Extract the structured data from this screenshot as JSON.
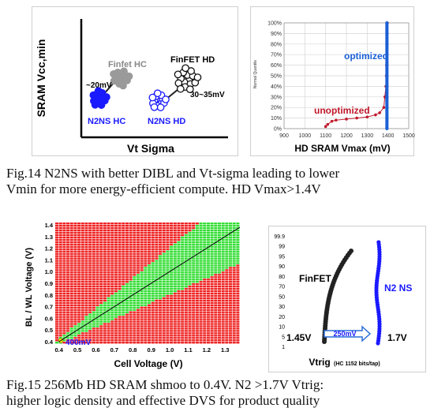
{
  "chart_data": [
    {
      "type": "scatter",
      "xlabel": "Vt Sigma",
      "ylabel": "SRAM Vcc,min",
      "series": [
        {
          "name": "Finfet HC",
          "color": "#9a9a9a"
        },
        {
          "name": "FinFET HD",
          "color": "#111111"
        },
        {
          "name": "N2NS HC",
          "color": "#1a1aff"
        },
        {
          "name": "N2NS HD",
          "color": "#1a1aff"
        }
      ],
      "annotations": [
        "~20mV",
        "30~35mV"
      ]
    },
    {
      "type": "scatter",
      "xlabel": "HD SRAM Vmax (mV)",
      "ylabel": "Normal Quantile",
      "xticks": [
        "900",
        "1000",
        "1100",
        "1200",
        "1300",
        "1400",
        "1500"
      ],
      "yticks": [
        "0%",
        "10%",
        "20%",
        "30%",
        "40%",
        "50%",
        "60%",
        "70%",
        "80%",
        "90%",
        "100%"
      ],
      "xlim": [
        900,
        1500
      ],
      "ylim": [
        0,
        100
      ],
      "series": [
        {
          "name": "optimized",
          "color": "#1a5fd6",
          "points": [
            [
              1395,
              0
            ],
            [
              1395,
              10
            ],
            [
              1395,
              20
            ],
            [
              1395,
              30
            ],
            [
              1395,
              40
            ],
            [
              1395,
              50
            ],
            [
              1395,
              60
            ],
            [
              1395,
              70
            ],
            [
              1395,
              80
            ],
            [
              1395,
              90
            ],
            [
              1395,
              100
            ]
          ]
        },
        {
          "name": "unoptimized",
          "color": "#c0192b",
          "points": [
            [
              1100,
              2
            ],
            [
              1110,
              4
            ],
            [
              1130,
              7
            ],
            [
              1150,
              8
            ],
            [
              1200,
              9
            ],
            [
              1250,
              10
            ],
            [
              1300,
              11
            ],
            [
              1340,
              13
            ],
            [
              1360,
              15
            ],
            [
              1380,
              20
            ],
            [
              1385,
              30
            ],
            [
              1390,
              40
            ],
            [
              1392,
              50
            ],
            [
              1393,
              60
            ],
            [
              1394,
              70
            ],
            [
              1395,
              80
            ],
            [
              1396,
              90
            ],
            [
              1397,
              100
            ]
          ]
        }
      ]
    },
    {
      "type": "heatmap",
      "xlabel": "Cell Voltage (V)",
      "ylabel": "BL / WL Voltage (V)",
      "xticks": [
        "0.4",
        "0.5",
        "0.6",
        "0.7",
        "0.8",
        "0.9",
        "1.0",
        "1.1",
        "1.2",
        "1.3"
      ],
      "yticks": [
        "0.4",
        "0.5",
        "0.6",
        "0.7",
        "0.8",
        "0.9",
        "1.0",
        "1.1",
        "1.2",
        "1.3",
        "1.4"
      ],
      "xlim": [
        0.38,
        1.38
      ],
      "ylim": [
        0.38,
        1.42
      ],
      "annotation": "400mV",
      "pass_color": "#33dd33",
      "fail_color": "#ee2222"
    },
    {
      "type": "scatter",
      "xlabel": "Vtrig",
      "xlabel_note": "(HC 1152 bits/tap)",
      "yticks": [
        "1",
        "5",
        "10",
        "20",
        "30",
        "50",
        "70",
        "80",
        "90",
        "95",
        "99",
        "99.9"
      ],
      "series": [
        {
          "name": "FinFET",
          "color": "#222222"
        },
        {
          "name": "N2 NS",
          "color": "#1a1aff"
        }
      ],
      "annotations": {
        "left": "1.45V",
        "delta": "250mV",
        "right": "1.7V"
      }
    }
  ],
  "captions": {
    "fig14_line1": "Fig.14  N2NS with better DIBL and Vt-sigma leading to lower",
    "fig14_line2": "Vmin for more energy-efficient compute.  HD Vmax>1.4V",
    "fig15_line1": "Fig.15 256Mb HD SRAM shmoo to 0.4V.  N2 >1.7V Vtrig:",
    "fig15_line2": "higher logic density and effective DVS for product quality"
  }
}
